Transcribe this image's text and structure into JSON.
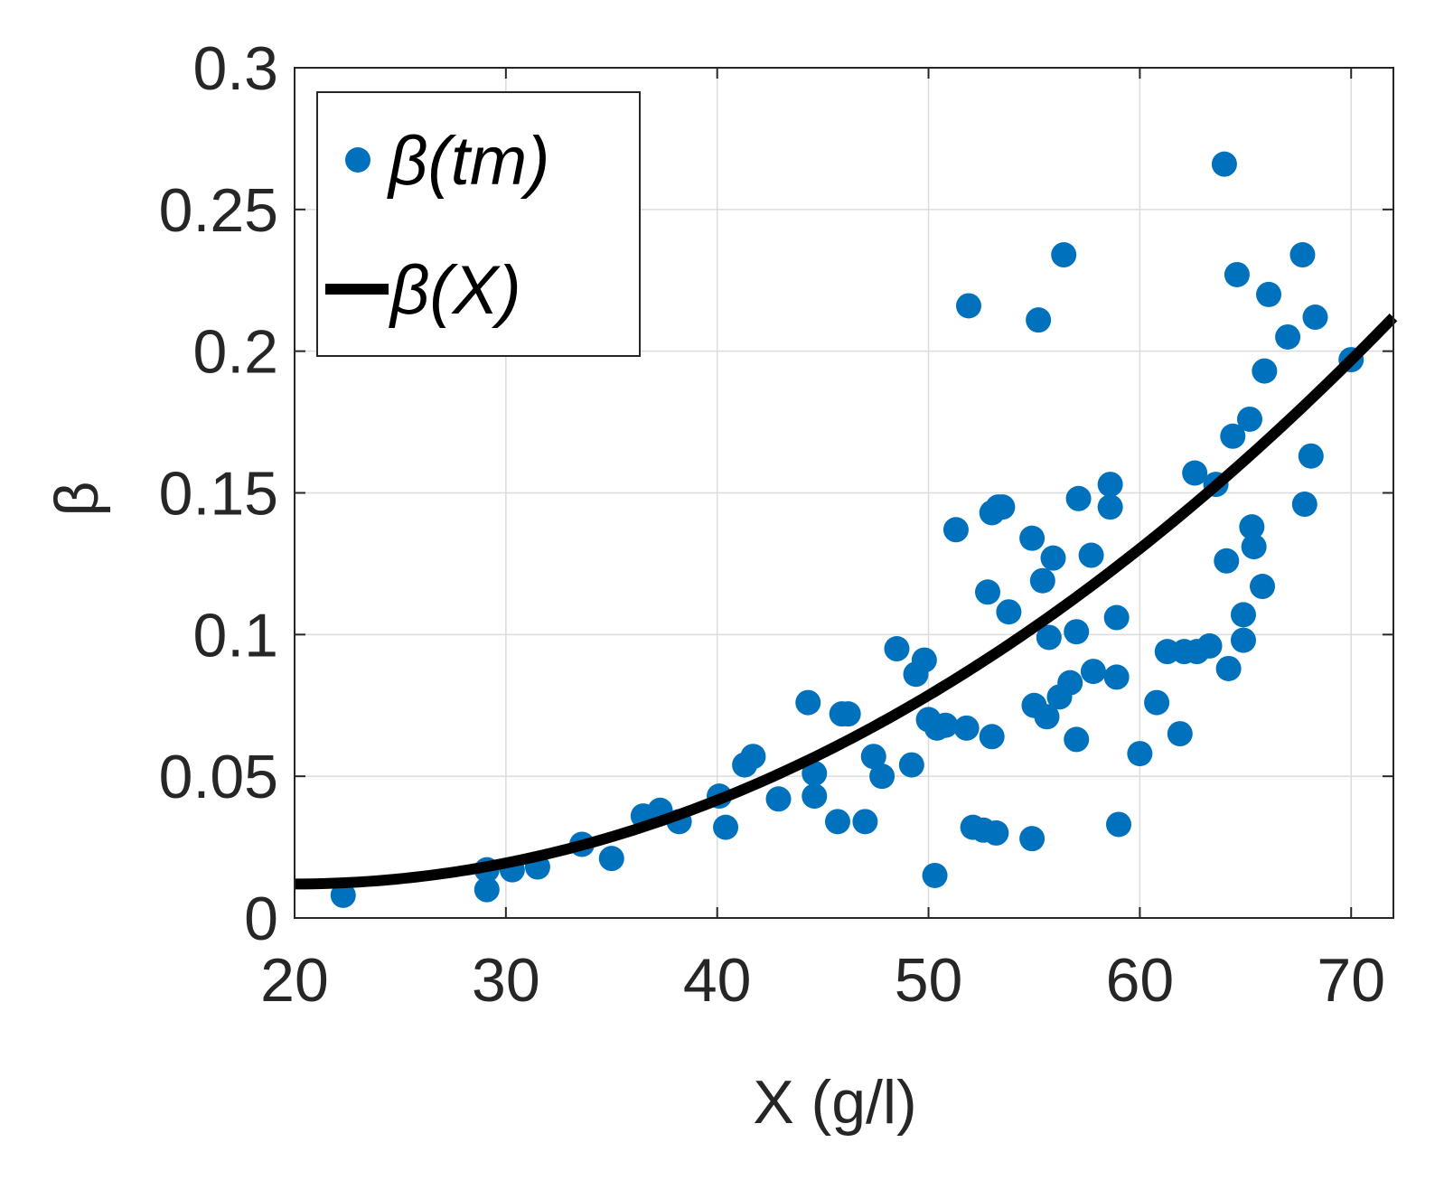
{
  "chart_data": {
    "type": "scatter",
    "title": "",
    "xlabel": "X (g/l)",
    "ylabel": "β",
    "xlim": [
      20,
      72
    ],
    "ylim": [
      0,
      0.3
    ],
    "xticks": [
      20,
      30,
      40,
      50,
      60,
      70
    ],
    "yticks": [
      0,
      0.05,
      0.1,
      0.15,
      0.2,
      0.25,
      0.3
    ],
    "xtick_labels": [
      "20",
      "30",
      "40",
      "50",
      "60",
      "70"
    ],
    "ytick_labels": [
      "0",
      "0.05",
      "0.1",
      "0.15",
      "0.2",
      "0.25",
      "0.3"
    ],
    "grid": true,
    "legend_position": "top-left",
    "series": [
      {
        "name": "β(tm)",
        "kind": "scatter",
        "color": "#0072BD",
        "points": [
          [
            22.3,
            0.008
          ],
          [
            29.1,
            0.01
          ],
          [
            29.1,
            0.017
          ],
          [
            30.3,
            0.017
          ],
          [
            31.5,
            0.018
          ],
          [
            33.6,
            0.026
          ],
          [
            35.0,
            0.021
          ],
          [
            36.5,
            0.036
          ],
          [
            37.3,
            0.038
          ],
          [
            38.2,
            0.034
          ],
          [
            40.1,
            0.043
          ],
          [
            40.4,
            0.032
          ],
          [
            41.3,
            0.054
          ],
          [
            41.7,
            0.057
          ],
          [
            42.9,
            0.042
          ],
          [
            44.3,
            0.076
          ],
          [
            44.6,
            0.043
          ],
          [
            44.6,
            0.051
          ],
          [
            45.7,
            0.034
          ],
          [
            45.9,
            0.072
          ],
          [
            46.2,
            0.072
          ],
          [
            47.0,
            0.034
          ],
          [
            47.4,
            0.057
          ],
          [
            47.8,
            0.05
          ],
          [
            48.5,
            0.095
          ],
          [
            49.2,
            0.054
          ],
          [
            49.4,
            0.086
          ],
          [
            49.8,
            0.091
          ],
          [
            50.0,
            0.07
          ],
          [
            50.3,
            0.015
          ],
          [
            50.4,
            0.067
          ],
          [
            50.8,
            0.068
          ],
          [
            51.3,
            0.137
          ],
          [
            51.8,
            0.067
          ],
          [
            51.9,
            0.216
          ],
          [
            52.1,
            0.032
          ],
          [
            52.6,
            0.031
          ],
          [
            52.8,
            0.115
          ],
          [
            53.0,
            0.064
          ],
          [
            53.0,
            0.143
          ],
          [
            53.2,
            0.03
          ],
          [
            53.3,
            0.145
          ],
          [
            53.5,
            0.145
          ],
          [
            53.8,
            0.108
          ],
          [
            54.9,
            0.134
          ],
          [
            54.9,
            0.028
          ],
          [
            55.0,
            0.075
          ],
          [
            55.2,
            0.211
          ],
          [
            55.4,
            0.119
          ],
          [
            55.6,
            0.071
          ],
          [
            55.7,
            0.099
          ],
          [
            55.9,
            0.127
          ],
          [
            56.2,
            0.078
          ],
          [
            56.4,
            0.234
          ],
          [
            56.7,
            0.083
          ],
          [
            57.0,
            0.101
          ],
          [
            57.0,
            0.063
          ],
          [
            57.1,
            0.148
          ],
          [
            57.7,
            0.128
          ],
          [
            57.8,
            0.087
          ],
          [
            58.6,
            0.153
          ],
          [
            58.6,
            0.145
          ],
          [
            58.9,
            0.085
          ],
          [
            58.9,
            0.106
          ],
          [
            59.0,
            0.033
          ],
          [
            60.0,
            0.058
          ],
          [
            60.8,
            0.076
          ],
          [
            61.3,
            0.094
          ],
          [
            61.9,
            0.065
          ],
          [
            62.1,
            0.094
          ],
          [
            62.6,
            0.157
          ],
          [
            62.7,
            0.094
          ],
          [
            63.3,
            0.096
          ],
          [
            63.6,
            0.153
          ],
          [
            64.0,
            0.266
          ],
          [
            64.1,
            0.126
          ],
          [
            64.2,
            0.088
          ],
          [
            64.4,
            0.17
          ],
          [
            64.6,
            0.227
          ],
          [
            64.9,
            0.107
          ],
          [
            64.9,
            0.098
          ],
          [
            65.2,
            0.176
          ],
          [
            65.3,
            0.138
          ],
          [
            65.4,
            0.131
          ],
          [
            65.8,
            0.117
          ],
          [
            65.9,
            0.193
          ],
          [
            66.1,
            0.22
          ],
          [
            67.0,
            0.205
          ],
          [
            67.7,
            0.234
          ],
          [
            67.8,
            0.146
          ],
          [
            68.1,
            0.163
          ],
          [
            68.3,
            0.212
          ],
          [
            70.0,
            0.197
          ]
        ]
      },
      {
        "name": "β(X)",
        "kind": "line",
        "color": "#000000",
        "curve": {
          "form": "a + b*(x - x0)^p",
          "a": 0.012,
          "b": 7.395e-05,
          "x0": 20,
          "p": 2
        },
        "x_range": [
          20,
          72
        ]
      }
    ]
  }
}
